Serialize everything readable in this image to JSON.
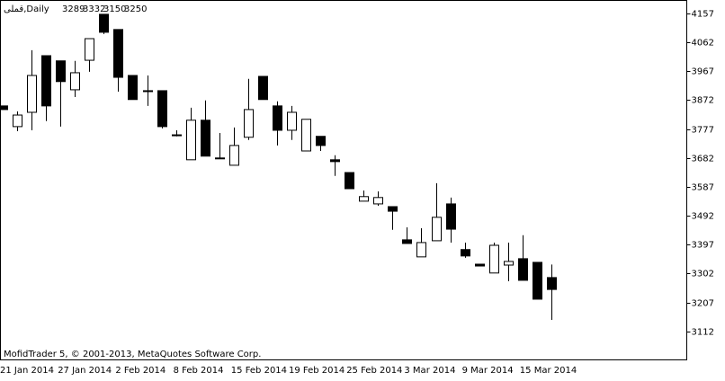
{
  "chart_data": {
    "type": "candlestick",
    "title": "قملی,Daily",
    "footer": "MofidTrader 5, © 2001-2013, MetaQuotes Software Corp.",
    "categories": [
      "21 Jan 2014",
      null,
      null,
      null,
      "27 Jan 2014",
      null,
      null,
      null,
      "2 Feb 2014",
      null,
      null,
      null,
      "8 Feb 2014",
      null,
      null,
      null,
      "15 Feb 2014",
      null,
      null,
      null,
      "19 Feb 2014",
      null,
      null,
      null,
      "25 Feb 2014",
      null,
      null,
      null,
      "3 Mar 2014",
      null,
      null,
      null,
      "9 Mar 2014",
      null,
      null,
      null,
      "15 Mar 2014",
      null,
      null
    ],
    "open": [
      3853,
      3785,
      3832,
      4018,
      4001,
      3906,
      4003,
      4154,
      4104,
      3953,
      3903,
      3903,
      3758,
      3676,
      3806,
      3682,
      3658,
      3750,
      3950,
      3853,
      3773,
      3705,
      3753,
      3676,
      3634,
      3540,
      3531,
      3522,
      3413,
      3357,
      3410,
      3531,
      3381,
      3333,
      3304,
      3330,
      3351,
      3339,
      3289
    ],
    "high": [
      3853,
      3835,
      4036,
      4018,
      4001,
      4001,
      4074,
      4154,
      4104,
      3953,
      3953,
      3903,
      3773,
      3847,
      3871,
      3764,
      3782,
      3942,
      3950,
      3868,
      3853,
      3809,
      3753,
      3691,
      3634,
      3575,
      3572,
      3522,
      3454,
      3451,
      3599,
      3552,
      3404,
      3333,
      3404,
      3404,
      3428,
      3339,
      3332
    ],
    "low": [
      3841,
      3770,
      3773,
      3803,
      3785,
      3882,
      3965,
      4089,
      3900,
      3874,
      3853,
      3779,
      3753,
      3676,
      3688,
      3680,
      3658,
      3741,
      3874,
      3723,
      3741,
      3705,
      3705,
      3623,
      3581,
      3540,
      3525,
      3446,
      3401,
      3357,
      3410,
      3404,
      3354,
      3327,
      3304,
      3277,
      3280,
      3218,
      3150
    ],
    "close": [
      3841,
      3823,
      3953,
      3853,
      3933,
      3962,
      4074,
      4095,
      3947,
      3874,
      3900,
      3785,
      3755,
      3806,
      3688,
      3680,
      3723,
      3841,
      3874,
      3773,
      3832,
      3809,
      3723,
      3670,
      3581,
      3555,
      3552,
      3507,
      3401,
      3404,
      3487,
      3448,
      3360,
      3327,
      3395,
      3342,
      3280,
      3218,
      3250
    ],
    "up_color": "#ffffff",
    "down_color": "#000000",
    "ylim": [
      3020,
      4201
    ],
    "yticks": [
      4157,
      4062,
      3967,
      3872,
      3777,
      3682,
      3587,
      3492,
      3397,
      3302,
      3207,
      3112
    ],
    "grid": false
  }
}
